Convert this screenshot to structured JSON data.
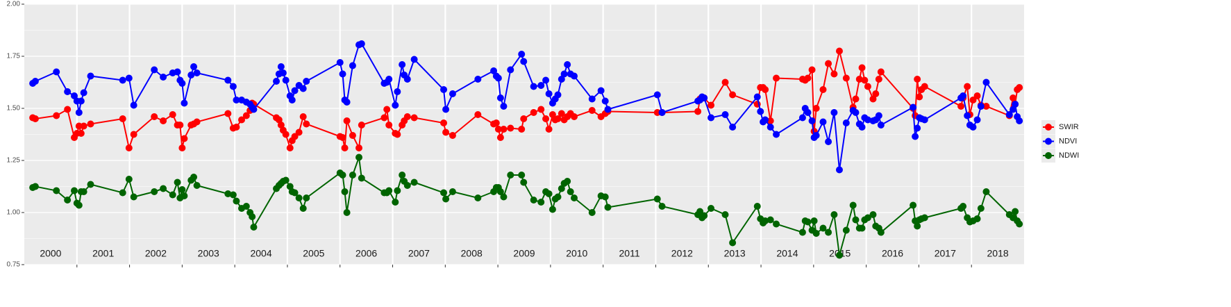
{
  "chart_data": {
    "type": "line",
    "x": [
      2000.16,
      2000.21,
      2000.61,
      2000.82,
      2000.95,
      2001.0,
      2001.04,
      2001.08,
      2001.13,
      2001.26,
      2001.87,
      2001.99,
      2002.08,
      2002.47,
      2002.64,
      2002.82,
      2002.91,
      2002.96,
      2003.0,
      2003.04,
      2003.17,
      2003.22,
      2003.28,
      2003.87,
      2003.97,
      2004.03,
      2004.13,
      2004.22,
      2004.29,
      2004.33,
      2004.36,
      2004.79,
      2004.84,
      2004.88,
      2004.92,
      2004.97,
      2005.05,
      2005.09,
      2005.14,
      2005.22,
      2005.3,
      2005.36,
      2006.0,
      2006.05,
      2006.09,
      2006.13,
      2006.24,
      2006.36,
      2006.41,
      2006.84,
      2006.89,
      2006.93,
      2007.05,
      2007.09,
      2007.18,
      2007.22,
      2007.28,
      2007.41,
      2007.97,
      2008.01,
      2008.14,
      2008.62,
      2008.92,
      2008.97,
      2009.01,
      2009.05,
      2009.11,
      2009.24,
      2009.45,
      2009.49,
      2009.68,
      2009.82,
      2009.91,
      2009.97,
      2010.04,
      2010.09,
      2010.14,
      2010.21,
      2010.26,
      2010.32,
      2010.38,
      2010.45,
      2010.79,
      2010.96,
      2011.04,
      2011.09,
      2012.03,
      2012.12,
      2012.8,
      2012.84,
      2012.88,
      2012.92,
      2013.05,
      2013.32,
      2013.46,
      2013.93,
      2013.99,
      2014.04,
      2014.08,
      2014.18,
      2014.29,
      2014.79,
      2014.84,
      2014.89,
      2014.97,
      2015.01,
      2015.05,
      2015.18,
      2015.28,
      2015.39,
      2015.49,
      2015.62,
      2015.75,
      2015.8,
      2015.87,
      2015.92,
      2015.97,
      2016.03,
      2016.13,
      2016.18,
      2016.24,
      2016.28,
      2016.89,
      2016.93,
      2016.97,
      2017.01,
      2017.05,
      2017.11,
      2017.8,
      2017.84,
      2017.92,
      2017.97,
      2018.03,
      2018.11,
      2018.18,
      2018.28,
      2018.72,
      2018.79,
      2018.83,
      2018.87,
      2018.91
    ],
    "series": [
      {
        "name": "SWIR",
        "color": "#ff0000",
        "values": [
          1.455,
          1.45,
          1.465,
          1.495,
          1.36,
          1.38,
          1.415,
          1.38,
          1.415,
          1.425,
          1.45,
          1.31,
          1.375,
          1.46,
          1.44,
          1.47,
          1.42,
          1.42,
          1.31,
          1.355,
          1.42,
          1.425,
          1.435,
          1.475,
          1.405,
          1.41,
          1.445,
          1.465,
          1.49,
          1.525,
          1.52,
          1.455,
          1.445,
          1.42,
          1.395,
          1.375,
          1.31,
          1.345,
          1.365,
          1.385,
          1.46,
          1.425,
          1.365,
          1.36,
          1.31,
          1.44,
          1.37,
          1.31,
          1.42,
          1.455,
          1.495,
          1.42,
          1.38,
          1.375,
          1.42,
          1.44,
          1.46,
          1.455,
          1.43,
          1.385,
          1.37,
          1.47,
          1.425,
          1.43,
          1.4,
          1.36,
          1.4,
          1.405,
          1.4,
          1.45,
          1.48,
          1.495,
          1.45,
          1.4,
          1.47,
          1.445,
          1.45,
          1.475,
          1.445,
          1.46,
          1.475,
          1.46,
          1.49,
          1.46,
          1.475,
          1.485,
          1.48,
          1.48,
          1.485,
          1.545,
          1.55,
          1.55,
          1.515,
          1.625,
          1.565,
          1.52,
          1.6,
          1.6,
          1.59,
          1.44,
          1.645,
          1.64,
          1.635,
          1.645,
          1.685,
          1.39,
          1.5,
          1.59,
          1.715,
          1.665,
          1.775,
          1.645,
          1.505,
          1.545,
          1.64,
          1.695,
          1.635,
          1.605,
          1.545,
          1.57,
          1.64,
          1.675,
          1.5,
          1.465,
          1.64,
          1.555,
          1.59,
          1.605,
          1.51,
          1.55,
          1.605,
          1.47,
          1.54,
          1.56,
          1.515,
          1.51,
          1.465,
          1.55,
          1.52,
          1.59,
          1.6
        ]
      },
      {
        "name": "NDVI",
        "color": "#0000ff",
        "values": [
          1.62,
          1.63,
          1.675,
          1.58,
          1.56,
          1.535,
          1.48,
          1.535,
          1.575,
          1.655,
          1.635,
          1.645,
          1.515,
          1.685,
          1.65,
          1.67,
          1.675,
          1.635,
          1.62,
          1.525,
          1.66,
          1.7,
          1.67,
          1.635,
          1.605,
          1.54,
          1.54,
          1.53,
          1.52,
          1.505,
          1.495,
          1.63,
          1.665,
          1.7,
          1.67,
          1.635,
          1.56,
          1.54,
          1.585,
          1.61,
          1.595,
          1.63,
          1.72,
          1.665,
          1.54,
          1.53,
          1.705,
          1.805,
          1.81,
          1.62,
          1.625,
          1.64,
          1.515,
          1.58,
          1.71,
          1.66,
          1.64,
          1.735,
          1.59,
          1.495,
          1.57,
          1.64,
          1.68,
          1.655,
          1.645,
          1.55,
          1.51,
          1.685,
          1.76,
          1.725,
          1.605,
          1.61,
          1.635,
          1.57,
          1.525,
          1.545,
          1.565,
          1.64,
          1.665,
          1.71,
          1.665,
          1.655,
          1.545,
          1.585,
          1.535,
          1.495,
          1.565,
          1.48,
          1.535,
          1.54,
          1.555,
          1.55,
          1.455,
          1.47,
          1.41,
          1.555,
          1.485,
          1.435,
          1.445,
          1.41,
          1.375,
          1.455,
          1.5,
          1.48,
          1.44,
          1.36,
          1.37,
          1.435,
          1.34,
          1.48,
          1.205,
          1.43,
          1.49,
          1.48,
          1.425,
          1.41,
          1.455,
          1.445,
          1.44,
          1.445,
          1.465,
          1.42,
          1.505,
          1.365,
          1.405,
          1.455,
          1.45,
          1.445,
          1.55,
          1.56,
          1.465,
          1.42,
          1.41,
          1.445,
          1.51,
          1.625,
          1.47,
          1.495,
          1.52,
          1.46,
          1.44
        ]
      },
      {
        "name": "NDWI",
        "color": "#006400",
        "values": [
          1.12,
          1.125,
          1.105,
          1.06,
          1.105,
          1.045,
          1.035,
          1.1,
          1.1,
          1.135,
          1.095,
          1.16,
          1.075,
          1.1,
          1.115,
          1.085,
          1.145,
          1.07,
          1.11,
          1.08,
          1.155,
          1.17,
          1.13,
          1.09,
          1.085,
          1.055,
          1.02,
          1.03,
          1.0,
          0.98,
          0.93,
          1.115,
          1.13,
          1.14,
          1.15,
          1.155,
          1.125,
          1.1,
          1.095,
          1.07,
          1.02,
          1.07,
          1.19,
          1.18,
          1.1,
          1.0,
          1.18,
          1.265,
          1.165,
          1.095,
          1.095,
          1.105,
          1.05,
          1.105,
          1.18,
          1.15,
          1.13,
          1.145,
          1.095,
          1.065,
          1.1,
          1.07,
          1.1,
          1.12,
          1.12,
          1.1,
          1.075,
          1.18,
          1.18,
          1.145,
          1.06,
          1.05,
          1.1,
          1.09,
          1.015,
          1.065,
          1.075,
          1.115,
          1.14,
          1.15,
          1.1,
          1.07,
          1.0,
          1.08,
          1.075,
          1.025,
          1.065,
          1.03,
          0.99,
          1.005,
          0.975,
          0.985,
          1.02,
          0.99,
          0.855,
          1.03,
          0.97,
          0.95,
          0.96,
          0.965,
          0.945,
          0.905,
          0.96,
          0.955,
          0.915,
          0.96,
          0.9,
          0.925,
          0.905,
          0.99,
          0.795,
          0.915,
          1.035,
          0.965,
          0.925,
          0.925,
          0.965,
          0.975,
          0.99,
          0.935,
          0.925,
          0.905,
          1.035,
          0.96,
          0.935,
          0.965,
          0.97,
          0.975,
          1.02,
          1.03,
          0.975,
          0.955,
          0.96,
          0.97,
          1.02,
          1.1,
          0.99,
          0.975,
          1.005,
          0.96,
          0.945
        ]
      }
    ],
    "xlim": [
      2000,
      2019
    ],
    "xticks": [
      2001,
      2002,
      2003,
      2004,
      2005,
      2006,
      2007,
      2008,
      2009,
      2010,
      2011,
      2012,
      2013,
      2014,
      2015,
      2016,
      2017,
      2018
    ],
    "year_labels": [
      "2000",
      "2001",
      "2002",
      "2003",
      "2004",
      "2005",
      "2006",
      "2007",
      "2008",
      "2009",
      "2010",
      "2011",
      "2012",
      "2013",
      "2014",
      "2015",
      "2016",
      "2017",
      "2018"
    ],
    "ylim": [
      0.75,
      2.0
    ],
    "yticks": [
      0.75,
      {
        "value": 1.0,
        "label": "1.00"
      },
      1.25,
      {
        "value": 1.5,
        "label": "1.50"
      },
      1.75,
      {
        "value": 2.0,
        "label": "2.00"
      }
    ],
    "yminorticks": [
      0.875,
      1.125,
      1.375,
      1.625,
      1.875
    ],
    "grid": true,
    "legend": "right"
  }
}
